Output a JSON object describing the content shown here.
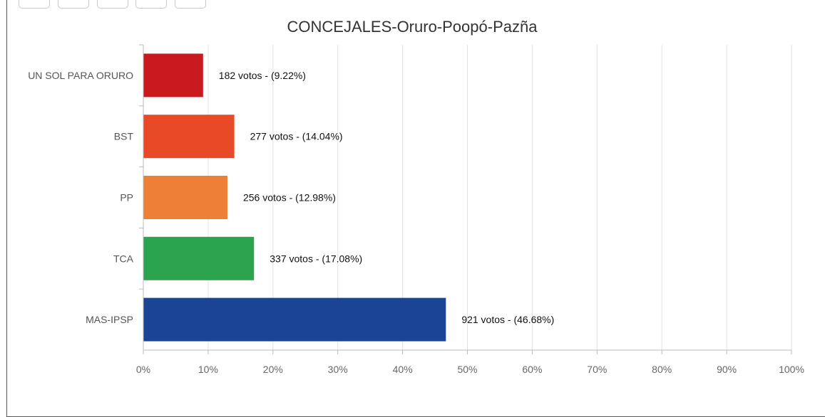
{
  "toolbar": {
    "buttons": [
      "tool-button-1",
      "tool-button-2",
      "tool-button-3",
      "tool-button-4",
      "tool-button-5"
    ]
  },
  "chart_data": {
    "type": "bar",
    "orientation": "horizontal",
    "title": "CONCEJALES-Oruro-Poopó-Pazña",
    "xlabel": "",
    "ylabel": "",
    "xlim": [
      0,
      100
    ],
    "grid": true,
    "categories": [
      "UN SOL PARA ORURO",
      "BST",
      "PP",
      "TCA",
      "MAS-IPSP"
    ],
    "values": [
      9.22,
      14.04,
      12.98,
      17.08,
      46.68
    ],
    "votes": [
      182,
      277,
      256,
      337,
      921
    ],
    "data_labels": [
      "182 votos - (9.22%)",
      "277 votos - (14.04%)",
      "256 votos - (12.98%)",
      "337 votos - (17.08%)",
      "921 votos - (46.68%)"
    ],
    "colors": [
      "#c8191f",
      "#e84a27",
      "#ee7f37",
      "#2ba34f",
      "#1a4594"
    ],
    "ticks": [
      "0%",
      "10%",
      "20%",
      "30%",
      "40%",
      "50%",
      "60%",
      "70%",
      "80%",
      "90%",
      "100%"
    ],
    "tick_values": [
      0,
      10,
      20,
      30,
      40,
      50,
      60,
      70,
      80,
      90,
      100
    ]
  }
}
